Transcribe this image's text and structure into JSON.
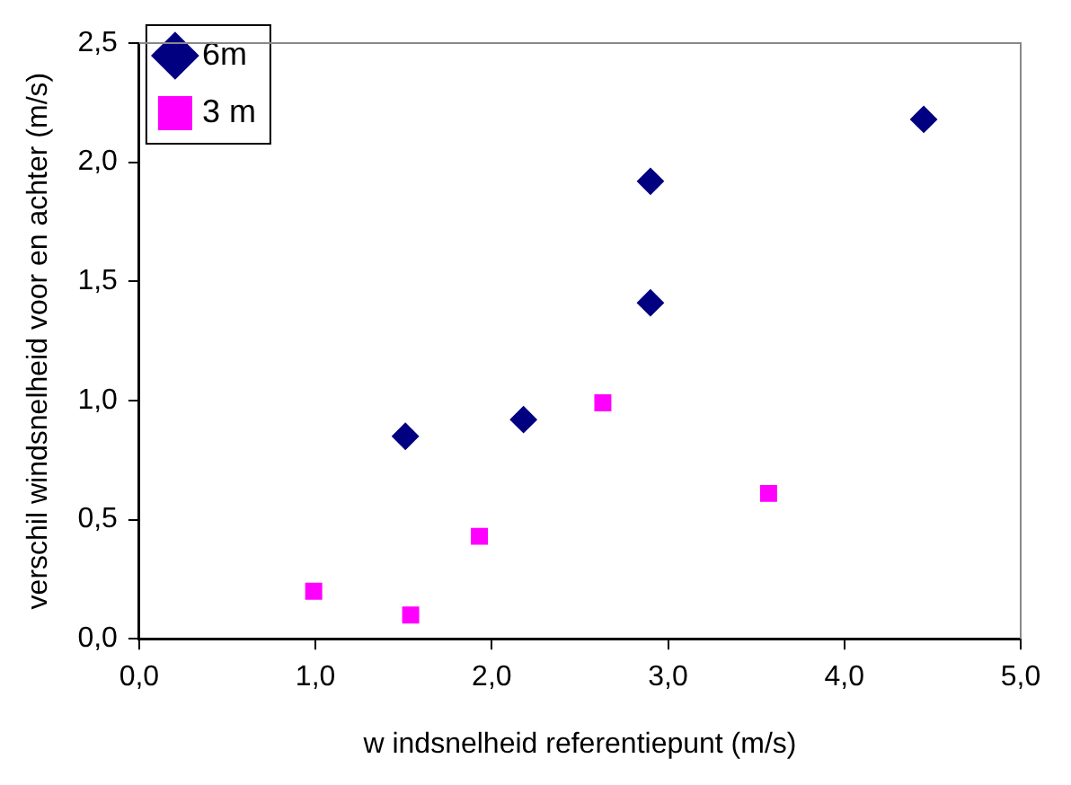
{
  "chart_data": {
    "type": "scatter",
    "xlabel": "w indsnelheid referentiepunt (m/s)",
    "ylabel": "verschil windsnelheid voor en achter (m/s)",
    "xlim": [
      0,
      5
    ],
    "ylim": [
      0,
      2.5
    ],
    "xticks": [
      {
        "value": 0,
        "label": "0,0"
      },
      {
        "value": 1,
        "label": "1,0"
      },
      {
        "value": 2,
        "label": "2,0"
      },
      {
        "value": 3,
        "label": "3,0"
      },
      {
        "value": 4,
        "label": "4,0"
      },
      {
        "value": 5,
        "label": "5,0"
      }
    ],
    "yticks": [
      {
        "value": 0,
        "label": "0,0"
      },
      {
        "value": 0.5,
        "label": "0,5"
      },
      {
        "value": 1,
        "label": "1,0"
      },
      {
        "value": 1.5,
        "label": "1,5"
      },
      {
        "value": 2,
        "label": "2,0"
      },
      {
        "value": 2.5,
        "label": "2,5"
      }
    ],
    "grid": false,
    "legend": "top left",
    "series": [
      {
        "name": "6m",
        "color": "#000080",
        "marker": "diamond",
        "x": [
          1.51,
          2.18,
          2.9,
          2.9,
          4.45
        ],
        "values": [
          0.85,
          0.92,
          1.41,
          1.92,
          2.18
        ]
      },
      {
        "name": "3 m",
        "color": "#ff00ff",
        "marker": "square",
        "x": [
          0.99,
          1.54,
          1.93,
          2.63,
          3.57
        ],
        "values": [
          0.2,
          0.1,
          0.43,
          0.99,
          0.61
        ]
      }
    ]
  }
}
